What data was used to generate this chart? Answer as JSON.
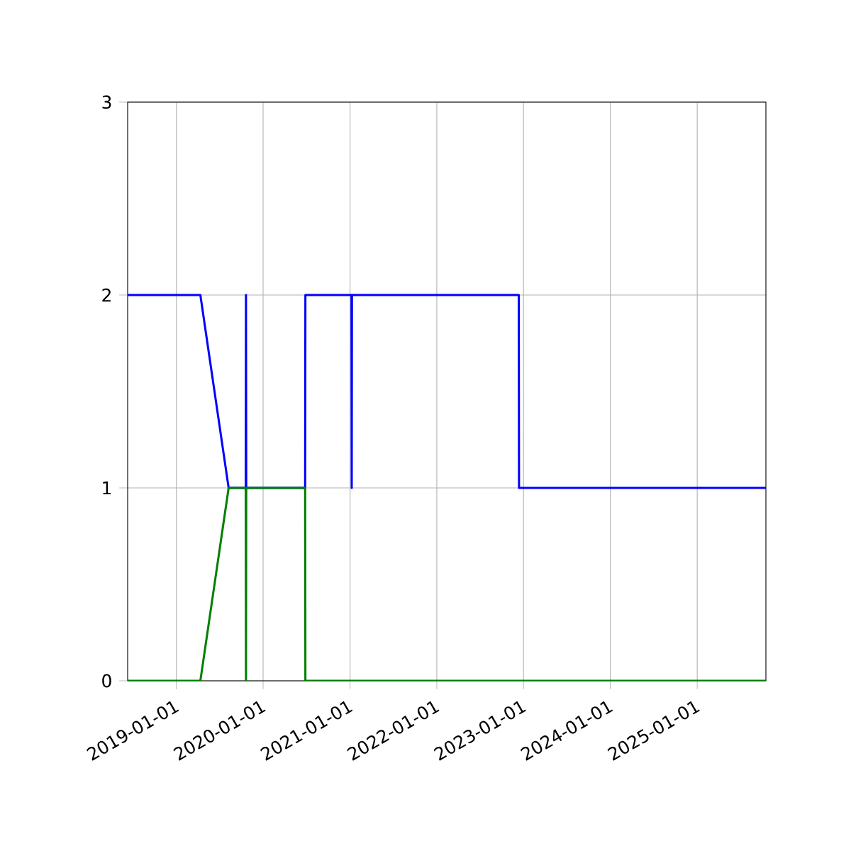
{
  "chart_data": {
    "type": "line",
    "xlim": [
      "2018-06-10",
      "2025-10-17"
    ],
    "ylim": [
      0,
      3
    ],
    "xticks": [
      "2019-01-01",
      "2020-01-01",
      "2021-01-01",
      "2022-01-01",
      "2023-01-01",
      "2024-01-01",
      "2025-01-01"
    ],
    "yticks": [
      0,
      1,
      2,
      3
    ],
    "grid": true,
    "marker": "none",
    "line_style": "solid",
    "series": [
      {
        "color": "#0000ff",
        "x": [
          "2018-06-10",
          "2019-04-12",
          "2019-08-09",
          "2019-10-20",
          "2019-10-21",
          "2019-10-22",
          "2020-06-26",
          "2020-06-27",
          "2021-01-07",
          "2021-01-08",
          "2021-01-09",
          "2022-12-12",
          "2022-12-13",
          "2025-10-17"
        ],
        "values": [
          2,
          2,
          1,
          1,
          2,
          1,
          1,
          2,
          2,
          1,
          2,
          2,
          1,
          1
        ]
      },
      {
        "color": "#008000",
        "x": [
          "2018-06-10",
          "2019-04-12",
          "2019-08-09",
          "2019-10-20",
          "2019-10-21",
          "2019-10-22",
          "2020-06-26",
          "2020-06-27",
          "2025-10-17"
        ],
        "values": [
          0,
          0,
          1,
          1,
          0,
          1,
          1,
          0,
          0
        ]
      }
    ]
  }
}
